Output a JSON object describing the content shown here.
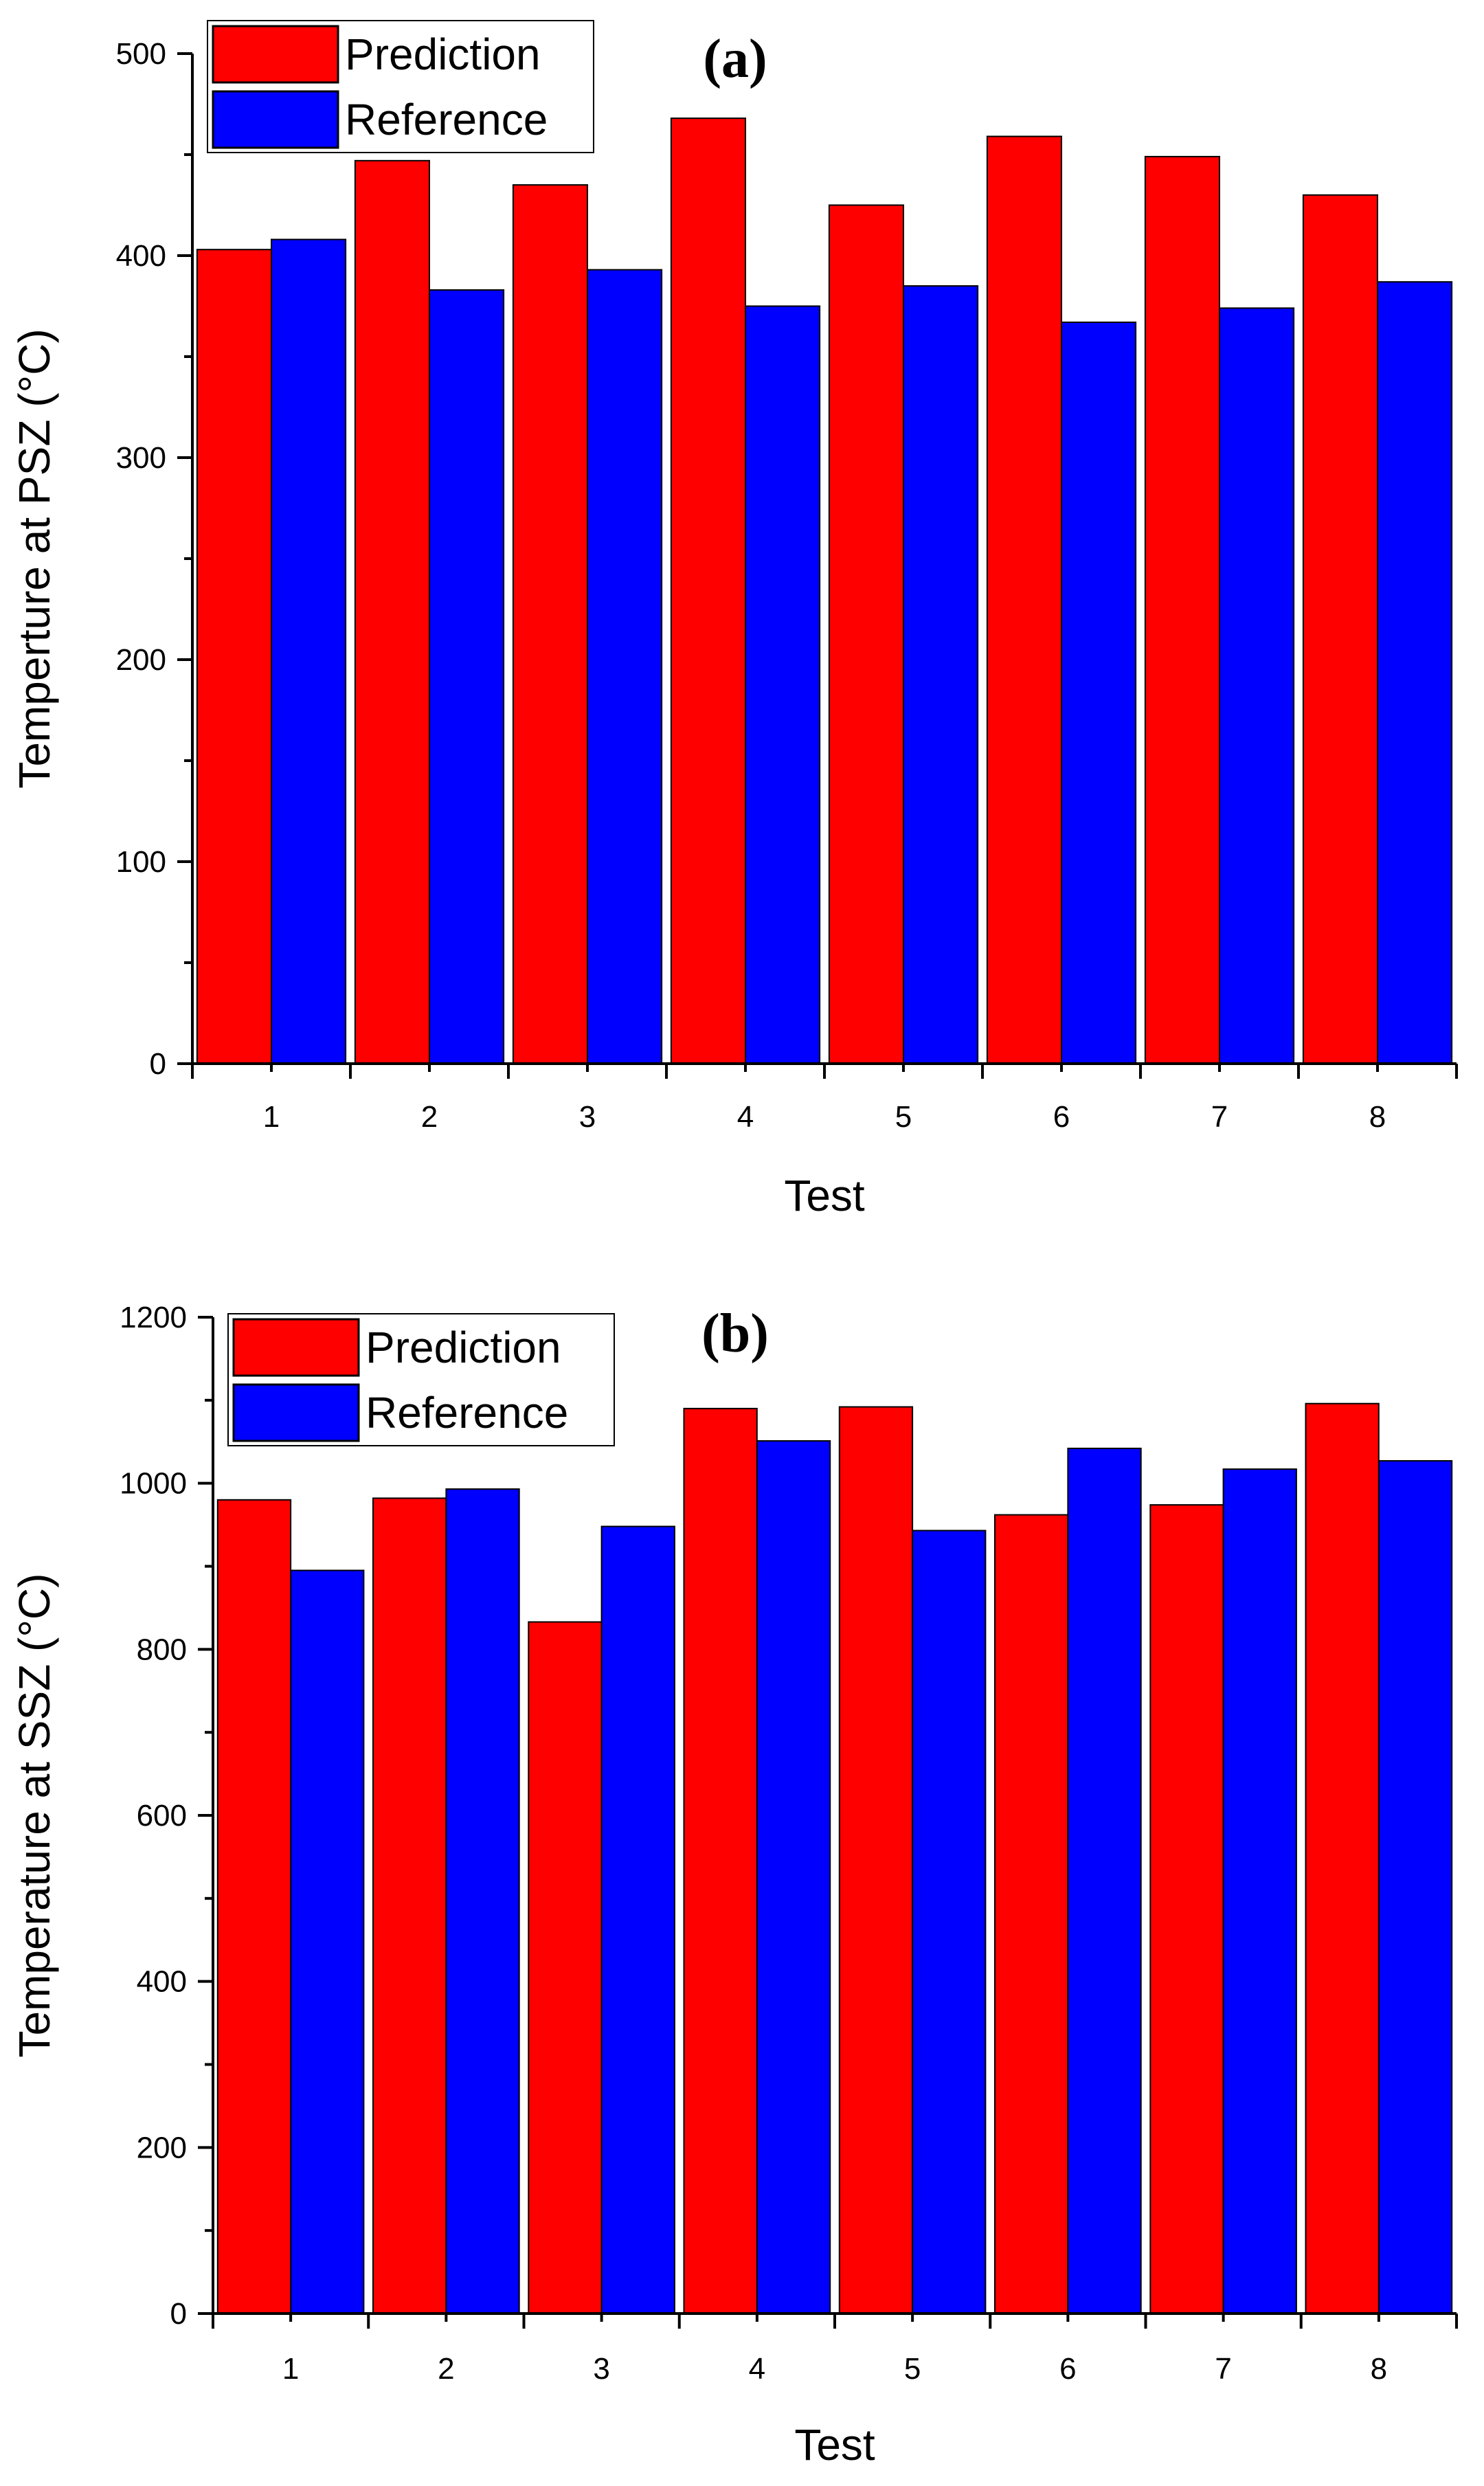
{
  "colors": {
    "prediction": "#ff0000",
    "reference": "#0000ff",
    "axis": "#000000"
  },
  "chart_data": [
    {
      "type": "bar",
      "panel_label": "(a)",
      "xlabel": "Test",
      "ylabel": "Temperture at PSZ (°C)",
      "categories": [
        "1",
        "2",
        "3",
        "4",
        "5",
        "6",
        "7",
        "8"
      ],
      "ylim": [
        0,
        500
      ],
      "yticks": [
        0,
        100,
        200,
        300,
        400,
        500
      ],
      "legend_position": "top-left",
      "series": [
        {
          "name": "Prediction",
          "color_key": "prediction",
          "values": [
            403,
            447,
            435,
            468,
            425,
            459,
            449,
            430
          ]
        },
        {
          "name": "Reference",
          "color_key": "reference",
          "values": [
            408,
            383,
            393,
            375,
            385,
            367,
            374,
            387
          ]
        }
      ]
    },
    {
      "type": "bar",
      "panel_label": "(b)",
      "xlabel": "Test",
      "ylabel": "Temperature at SSZ (°C)",
      "categories": [
        "1",
        "2",
        "3",
        "4",
        "5",
        "6",
        "7",
        "8"
      ],
      "ylim": [
        0,
        1200
      ],
      "yticks": [
        0,
        200,
        400,
        600,
        800,
        1000,
        1200
      ],
      "legend_position": "top-left",
      "series": [
        {
          "name": "Prediction",
          "color_key": "prediction",
          "values": [
            980,
            982,
            833,
            1090,
            1092,
            962,
            974,
            1096
          ]
        },
        {
          "name": "Reference",
          "color_key": "reference",
          "values": [
            895,
            993,
            948,
            1051,
            943,
            1042,
            1017,
            1027
          ]
        }
      ]
    }
  ]
}
